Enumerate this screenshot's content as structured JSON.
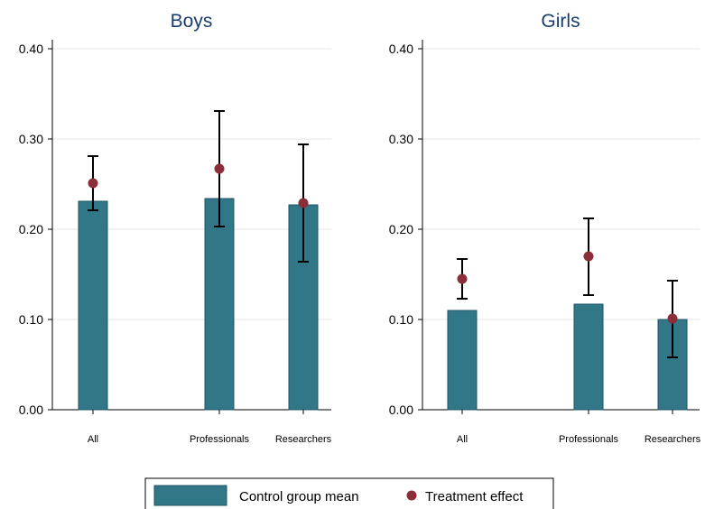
{
  "chart_data": {
    "type": "bar",
    "panels": [
      {
        "title": "Boys",
        "categories": [
          "All",
          "Professionals",
          "Researchers"
        ],
        "control_group_mean": [
          0.231,
          0.234,
          0.227
        ],
        "treatment_effect": [
          0.251,
          0.267,
          0.229
        ],
        "ci_low": [
          0.221,
          0.203,
          0.164
        ],
        "ci_high": [
          0.281,
          0.331,
          0.294
        ]
      },
      {
        "title": "Girls",
        "categories": [
          "All",
          "Professionals",
          "Researchers"
        ],
        "control_group_mean": [
          0.11,
          0.117,
          0.1
        ],
        "treatment_effect": [
          0.145,
          0.17,
          0.101
        ],
        "ci_low": [
          0.123,
          0.127,
          0.058
        ],
        "ci_high": [
          0.167,
          0.212,
          0.143
        ]
      }
    ],
    "yticks": [
      "0.00",
      "0.10",
      "0.20",
      "0.30",
      "0.40"
    ],
    "ylim": [
      0,
      0.4
    ],
    "grid": true,
    "legend": {
      "position": "bottom",
      "items": [
        {
          "label": "Control group mean",
          "type": "bar"
        },
        {
          "label": "Treatment effect",
          "type": "point"
        }
      ]
    },
    "colors": {
      "bar": "#317787",
      "bar_edge": "#1f5664",
      "point": "#8c2d3a",
      "errorbar": "#000000",
      "grid": "#e6e6e6",
      "title": "#1a3d6d"
    }
  }
}
